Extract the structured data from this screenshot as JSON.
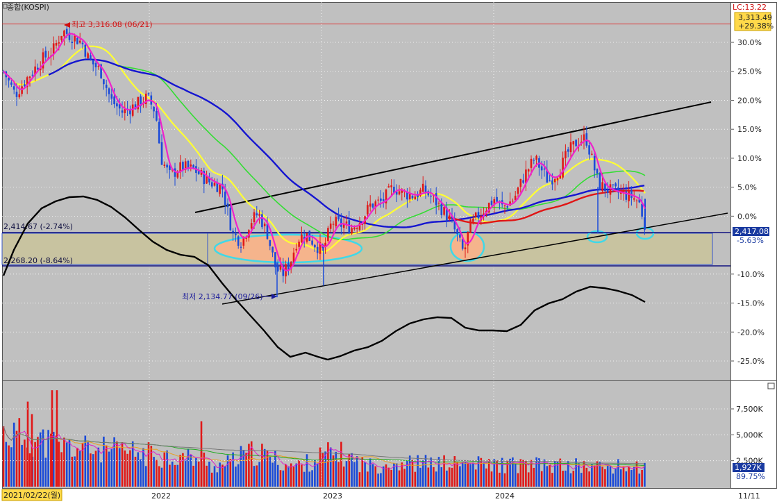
{
  "chart_data": {
    "type": "candlestick",
    "title": "종합(KOSPI)",
    "lc_label": "LC:13.22",
    "last_price": "3,313.49",
    "last_change": "+29.38%",
    "current_price_label": "2,417.08",
    "current_pct_label": "-5.63%",
    "high_label": "최고 3,316.08 (06/21)",
    "low_label": "최저 2,134.77 (09/26)",
    "support_line_1": "2,414.67 (-2.74%)",
    "support_line_2": "2,268.20 (-8.64%)",
    "y_ticks": [
      {
        "v": 30,
        "label": "30.0%"
      },
      {
        "v": 25,
        "label": "25.0%"
      },
      {
        "v": 20,
        "label": "20.0%"
      },
      {
        "v": 15,
        "label": "15.0%"
      },
      {
        "v": 10,
        "label": "10.0%"
      },
      {
        "v": 5,
        "label": "5.0%"
      },
      {
        "v": 0,
        "label": "0.0%"
      },
      {
        "v": -10,
        "label": "-10.0%"
      },
      {
        "v": -15,
        "label": "-15.0%"
      },
      {
        "v": -20,
        "label": "-20.0%"
      },
      {
        "v": -25,
        "label": "-25.0%"
      }
    ],
    "ylim": [
      -28.5,
      36
    ],
    "x_labels": [
      "2022",
      "2023",
      "2024"
    ],
    "start_date_label": "2021/02/22(월)",
    "end_date_label": "11/11",
    "volume_ticks": [
      {
        "v": 7500,
        "label": "7,500K"
      },
      {
        "v": 5000,
        "label": "5,000K"
      },
      {
        "v": 2500,
        "label": "2,500K"
      }
    ],
    "volume_ylim": [
      0,
      10500
    ],
    "volume_last_label": "1,927K",
    "volume_pct_label": "89.75%"
  }
}
